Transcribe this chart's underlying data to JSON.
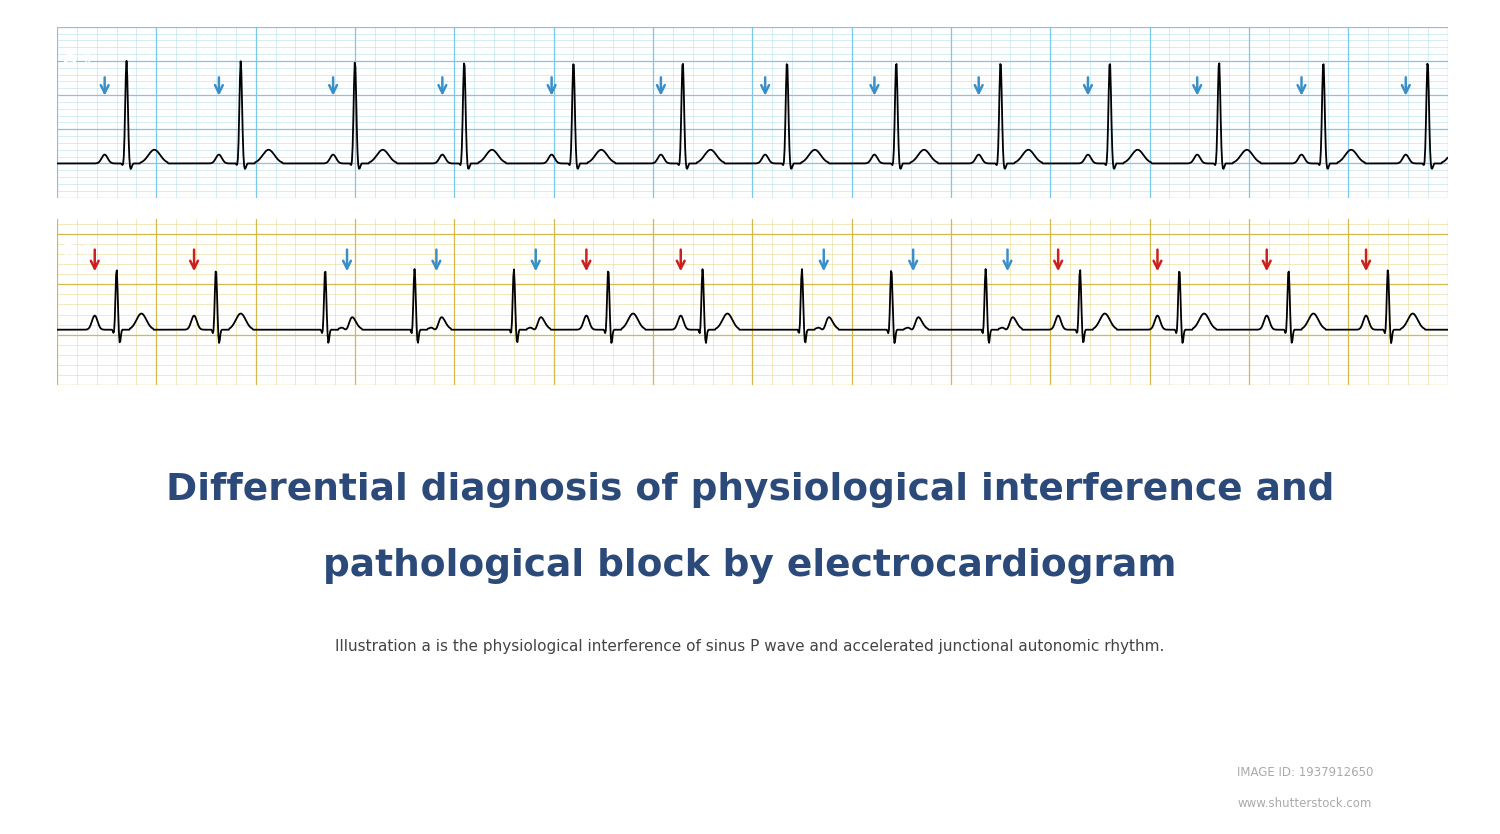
{
  "title_line1": "Differential diagnosis of physiological interference and",
  "title_line2": "pathological block by electrocardiogram",
  "subtitle": "Illustration a is the physiological interference of sinus P wave and accelerated junctional autonomic rhythm.",
  "title_color": "#2B4A7A",
  "subtitle_color": "#444444",
  "roman_two": "Ⅱ",
  "panel_a_bg": "#E8F4FB",
  "panel_a_border": "#4AABDB",
  "panel_a_grid_major": "#7AC8E8",
  "panel_a_grid_minor": "#B8DFF0",
  "panel_b_bg": "#FEFBE8",
  "panel_b_border": "#C8A020",
  "panel_b_grid_major": "#D4B84A",
  "panel_b_grid_minor": "#E8D890",
  "label_a_bg": "#3AAEDC",
  "label_b_bg": "#B8A020",
  "label_text_color": "#FFFFFF",
  "arrow_blue": "#3A8FC8",
  "arrow_red": "#CC2020",
  "footer_bg": "#2D3A4A",
  "footer_text": "#FFFFFF",
  "fig_bg": "#FFFFFF"
}
